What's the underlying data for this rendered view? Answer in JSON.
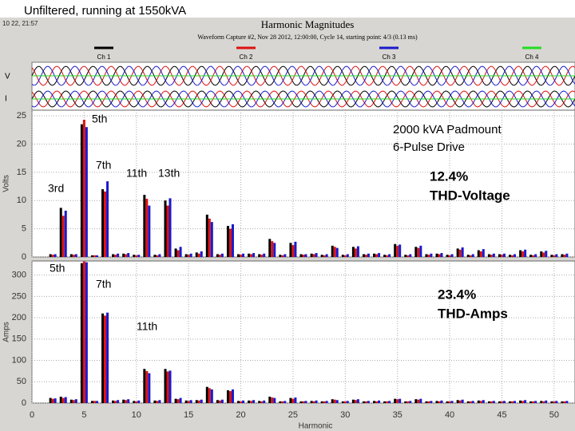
{
  "header": {
    "title": "Unfiltered, running at 1550kVA",
    "timestamp": "10 22, 21:57",
    "window_title": "Harmonic Magnitudes",
    "caption": "Waveform Capture #2, Nov 28 2012, 12:00:00, Cycle 14, starting point: 4/3 (0.13 ms)",
    "strip_labels": [
      "V",
      "I"
    ],
    "extra_channel": {
      "name": "Ch 4",
      "color": "#22dd22"
    }
  },
  "chart_data": [
    {
      "type": "bar",
      "y_label": "Volts",
      "annotations": [
        "5th",
        "7th",
        "3rd",
        "11th",
        "13th",
        "2000 kVA Padmount",
        "6-Pulse Drive",
        "12.4%",
        "THD-Voltage"
      ],
      "x": [
        2,
        3,
        4,
        5,
        6,
        7,
        8,
        9,
        10,
        11,
        12,
        13,
        14,
        15,
        16,
        17,
        18,
        19,
        20,
        21,
        22,
        23,
        24,
        25,
        26,
        27,
        28,
        29,
        30,
        31,
        32,
        33,
        34,
        35,
        36,
        37,
        38,
        39,
        40,
        41,
        42,
        43,
        44,
        45,
        46,
        47,
        48,
        49,
        50,
        51
      ],
      "xlim": [
        0,
        52
      ],
      "xticks": [
        0,
        5,
        10,
        15,
        20,
        25,
        30,
        35,
        40,
        45,
        50
      ],
      "ylim": [
        0,
        26
      ],
      "yticks": [
        0,
        5,
        10,
        15,
        20,
        25
      ],
      "grid": true,
      "series": [
        {
          "name": "Ch 1",
          "color": "#000000",
          "values": [
            0.5,
            8.7,
            0.5,
            23.5,
            0.3,
            12,
            0.5,
            0.6,
            0.4,
            11,
            0.4,
            10,
            1.5,
            0.5,
            0.8,
            7.5,
            0.5,
            5.5,
            0.5,
            0.6,
            0.5,
            3.2,
            0.4,
            2.5,
            0.5,
            0.6,
            0.4,
            2.0,
            0.4,
            1.8,
            0.5,
            0.6,
            0.4,
            2.3,
            0.4,
            1.8,
            0.5,
            0.6,
            0.4,
            1.5,
            0.4,
            1.2,
            0.5,
            0.5,
            0.4,
            1.2,
            0.4,
            1.0,
            0.4,
            0.5
          ]
        },
        {
          "name": "Ch 2",
          "color": "#dd1111",
          "values": [
            0.4,
            7.3,
            0.4,
            24.3,
            0.3,
            11.6,
            0.4,
            0.5,
            0.3,
            10.3,
            0.3,
            9.1,
            1.2,
            0.4,
            0.6,
            6.8,
            0.4,
            5.0,
            0.4,
            0.5,
            0.4,
            2.8,
            0.3,
            2.1,
            0.4,
            0.5,
            0.3,
            1.8,
            0.3,
            1.5,
            0.4,
            0.5,
            0.3,
            2.0,
            0.3,
            1.6,
            0.4,
            0.5,
            0.3,
            1.3,
            0.3,
            1.0,
            0.4,
            0.4,
            0.3,
            1.0,
            0.3,
            0.8,
            0.3,
            0.4
          ]
        },
        {
          "name": "Ch 3",
          "color": "#1a1acc",
          "values": [
            0.5,
            8.2,
            0.5,
            23.0,
            0.3,
            13.4,
            0.6,
            0.7,
            0.4,
            9.1,
            0.5,
            10.4,
            1.8,
            0.6,
            1.0,
            6.2,
            0.6,
            5.8,
            0.6,
            0.7,
            0.6,
            2.5,
            0.5,
            2.7,
            0.5,
            0.7,
            0.5,
            1.6,
            0.5,
            1.9,
            0.6,
            0.7,
            0.5,
            2.2,
            0.5,
            2.0,
            0.6,
            0.7,
            0.5,
            1.7,
            0.5,
            1.4,
            0.6,
            0.6,
            0.5,
            1.3,
            0.5,
            1.1,
            0.5,
            0.6
          ]
        }
      ]
    },
    {
      "type": "bar",
      "x_label": "Harmonic",
      "y_label": "Amps",
      "annotations": [
        "5th",
        "7th",
        "11th",
        "23.4%",
        "THD-Amps"
      ],
      "x": [
        2,
        3,
        4,
        5,
        6,
        7,
        8,
        9,
        10,
        11,
        12,
        13,
        14,
        15,
        16,
        17,
        18,
        19,
        20,
        21,
        22,
        23,
        24,
        25,
        26,
        27,
        28,
        29,
        30,
        31,
        32,
        33,
        34,
        35,
        36,
        37,
        38,
        39,
        40,
        41,
        42,
        43,
        44,
        45,
        46,
        47,
        48,
        49,
        50,
        51
      ],
      "xlim": [
        0,
        52
      ],
      "xticks": [
        0,
        5,
        10,
        15,
        20,
        25,
        30,
        35,
        40,
        45,
        50
      ],
      "ylim": [
        0,
        333
      ],
      "yticks": [
        0,
        50,
        100,
        150,
        200,
        250,
        300
      ],
      "grid": true,
      "series": [
        {
          "color": "#000000",
          "values": [
            12,
            15,
            8,
            328,
            5,
            210,
            6,
            8,
            5,
            80,
            6,
            80,
            10,
            6,
            7,
            38,
            7,
            30,
            5,
            6,
            5,
            15,
            4,
            12,
            4,
            5,
            4,
            9,
            4,
            8,
            4,
            5,
            4,
            10,
            4,
            9,
            4,
            5,
            4,
            7,
            4,
            6,
            4,
            4,
            4,
            6,
            4,
            5,
            4,
            4
          ]
        },
        {
          "color": "#dd1111",
          "values": [
            10,
            12,
            7,
            332,
            5,
            205,
            5,
            7,
            4,
            75,
            5,
            74,
            9,
            5,
            6,
            35,
            6,
            28,
            4,
            5,
            4,
            13,
            4,
            10,
            4,
            4,
            4,
            8,
            4,
            7,
            4,
            4,
            4,
            9,
            4,
            8,
            4,
            4,
            4,
            6,
            4,
            5,
            4,
            4,
            4,
            5,
            4,
            4,
            4,
            4
          ]
        },
        {
          "color": "#1a1acc",
          "values": [
            11,
            14,
            9,
            330,
            5,
            212,
            7,
            9,
            6,
            70,
            7,
            76,
            12,
            7,
            8,
            32,
            8,
            32,
            6,
            7,
            6,
            12,
            5,
            13,
            5,
            6,
            5,
            7,
            5,
            9,
            5,
            6,
            5,
            10,
            5,
            10,
            5,
            6,
            5,
            8,
            5,
            7,
            5,
            5,
            5,
            7,
            5,
            6,
            5,
            5
          ]
        }
      ]
    }
  ]
}
